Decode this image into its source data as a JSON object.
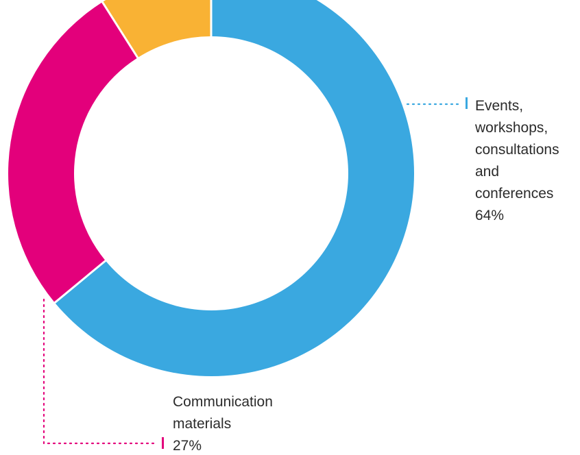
{
  "chart_data": {
    "type": "pie",
    "variant": "donut",
    "legend": "none",
    "title": "",
    "slices": [
      {
        "name": "Events, workshops, consultations and conferences",
        "label_lines": [
          "Events,",
          "workshops,",
          "consultations",
          "and",
          "conferences"
        ],
        "value_text": "64%",
        "value": 64,
        "color": "#3aa8e0"
      },
      {
        "name": "Communication materials",
        "label_lines": [
          "Communication",
          "materials"
        ],
        "value_text": "27%",
        "value": 27,
        "color": "#e3007b"
      },
      {
        "name": "",
        "label_lines": [],
        "value_text": "",
        "value": 9,
        "color": "#f9b234"
      }
    ]
  }
}
